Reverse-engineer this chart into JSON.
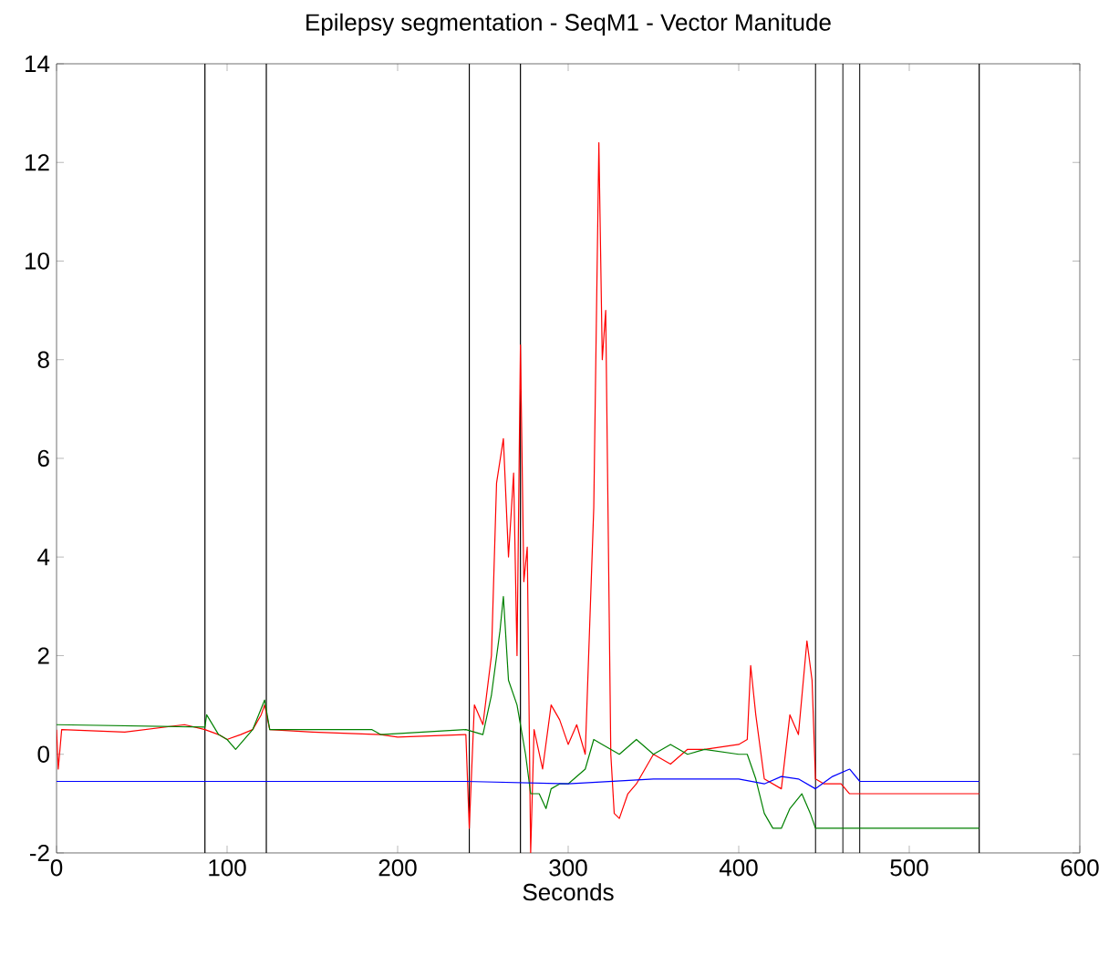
{
  "chart_data": {
    "type": "line",
    "title": "Epilepsy segmentation - SeqM1 - Vector Manitude",
    "xlabel": "Seconds",
    "xlim": [
      0,
      600
    ],
    "ylim": [
      -2,
      14
    ],
    "xticks": [
      0,
      100,
      200,
      300,
      400,
      500,
      600
    ],
    "yticks": [
      -2,
      0,
      2,
      4,
      6,
      8,
      10,
      12,
      14
    ],
    "line_style": "solid",
    "marker": "none",
    "series": [
      {
        "color": "#ff0000",
        "x": [
          0,
          1,
          3,
          40,
          75,
          87,
          95,
          100,
          108,
          115,
          120,
          122,
          125,
          150,
          190,
          200,
          240,
          242,
          245,
          250,
          255,
          258,
          262,
          265,
          268,
          270,
          272,
          274,
          276,
          278,
          280,
          285,
          290,
          295,
          300,
          305,
          310,
          315,
          318,
          320,
          322,
          325,
          327,
          330,
          335,
          340,
          345,
          350,
          360,
          370,
          380,
          400,
          405,
          407,
          410,
          415,
          420,
          425,
          430,
          435,
          440,
          443,
          445,
          450,
          455,
          460,
          465,
          541
        ],
        "values": [
          0.5,
          -0.3,
          0.5,
          0.45,
          0.6,
          0.5,
          0.4,
          0.3,
          0.4,
          0.5,
          0.8,
          1.0,
          0.5,
          0.45,
          0.4,
          0.35,
          0.4,
          -1.5,
          1.0,
          0.6,
          2.0,
          5.5,
          6.4,
          4.0,
          5.7,
          2.0,
          8.3,
          3.5,
          4.2,
          -2.0,
          0.5,
          -0.3,
          1.0,
          0.7,
          0.2,
          0.6,
          0.0,
          5.0,
          12.4,
          8.0,
          9.0,
          0.0,
          -1.2,
          -1.3,
          -0.8,
          -0.6,
          -0.3,
          0.0,
          -0.2,
          0.1,
          0.1,
          0.2,
          0.3,
          1.8,
          0.8,
          -0.5,
          -0.6,
          -0.7,
          0.8,
          0.4,
          2.3,
          1.5,
          -0.5,
          -0.6,
          -0.6,
          -0.6,
          -0.8,
          -0.8
        ]
      },
      {
        "color": "#008000",
        "x": [
          0,
          87,
          88,
          95,
          100,
          105,
          115,
          122,
          125,
          185,
          190,
          240,
          250,
          255,
          260,
          262,
          265,
          270,
          275,
          278,
          283,
          287,
          290,
          295,
          300,
          310,
          315,
          320,
          330,
          340,
          350,
          360,
          370,
          380,
          400,
          405,
          410,
          415,
          420,
          425,
          430,
          437,
          442,
          445,
          541
        ],
        "values": [
          0.6,
          0.55,
          0.8,
          0.4,
          0.3,
          0.1,
          0.5,
          1.1,
          0.5,
          0.5,
          0.4,
          0.5,
          0.4,
          1.2,
          2.5,
          3.2,
          1.5,
          1.0,
          0.0,
          -0.8,
          -0.8,
          -1.1,
          -0.7,
          -0.6,
          -0.6,
          -0.3,
          0.3,
          0.2,
          0.0,
          0.3,
          0.0,
          0.2,
          0.0,
          0.1,
          0.0,
          0.0,
          -0.5,
          -1.2,
          -1.5,
          -1.5,
          -1.1,
          -0.8,
          -1.2,
          -1.5,
          -1.5
        ]
      },
      {
        "color": "#0000ff",
        "x": [
          0,
          240,
          300,
          350,
          400,
          415,
          425,
          435,
          445,
          455,
          465,
          471,
          541
        ],
        "values": [
          -0.55,
          -0.55,
          -0.6,
          -0.5,
          -0.5,
          -0.6,
          -0.45,
          -0.5,
          -0.7,
          -0.45,
          -0.3,
          -0.55,
          -0.55
        ]
      }
    ],
    "ref_lines": [
      {
        "axis": "x",
        "value": 87,
        "color": "#000000"
      },
      {
        "axis": "x",
        "value": 123,
        "color": "#000000"
      },
      {
        "axis": "x",
        "value": 242,
        "color": "#000000"
      },
      {
        "axis": "x",
        "value": 272,
        "color": "#000000"
      },
      {
        "axis": "x",
        "value": 445,
        "color": "#000000"
      },
      {
        "axis": "x",
        "value": 461,
        "color": "#000000"
      },
      {
        "axis": "x",
        "value": 471,
        "color": "#000000"
      },
      {
        "axis": "x",
        "value": 541,
        "color": "#000000"
      }
    ]
  }
}
